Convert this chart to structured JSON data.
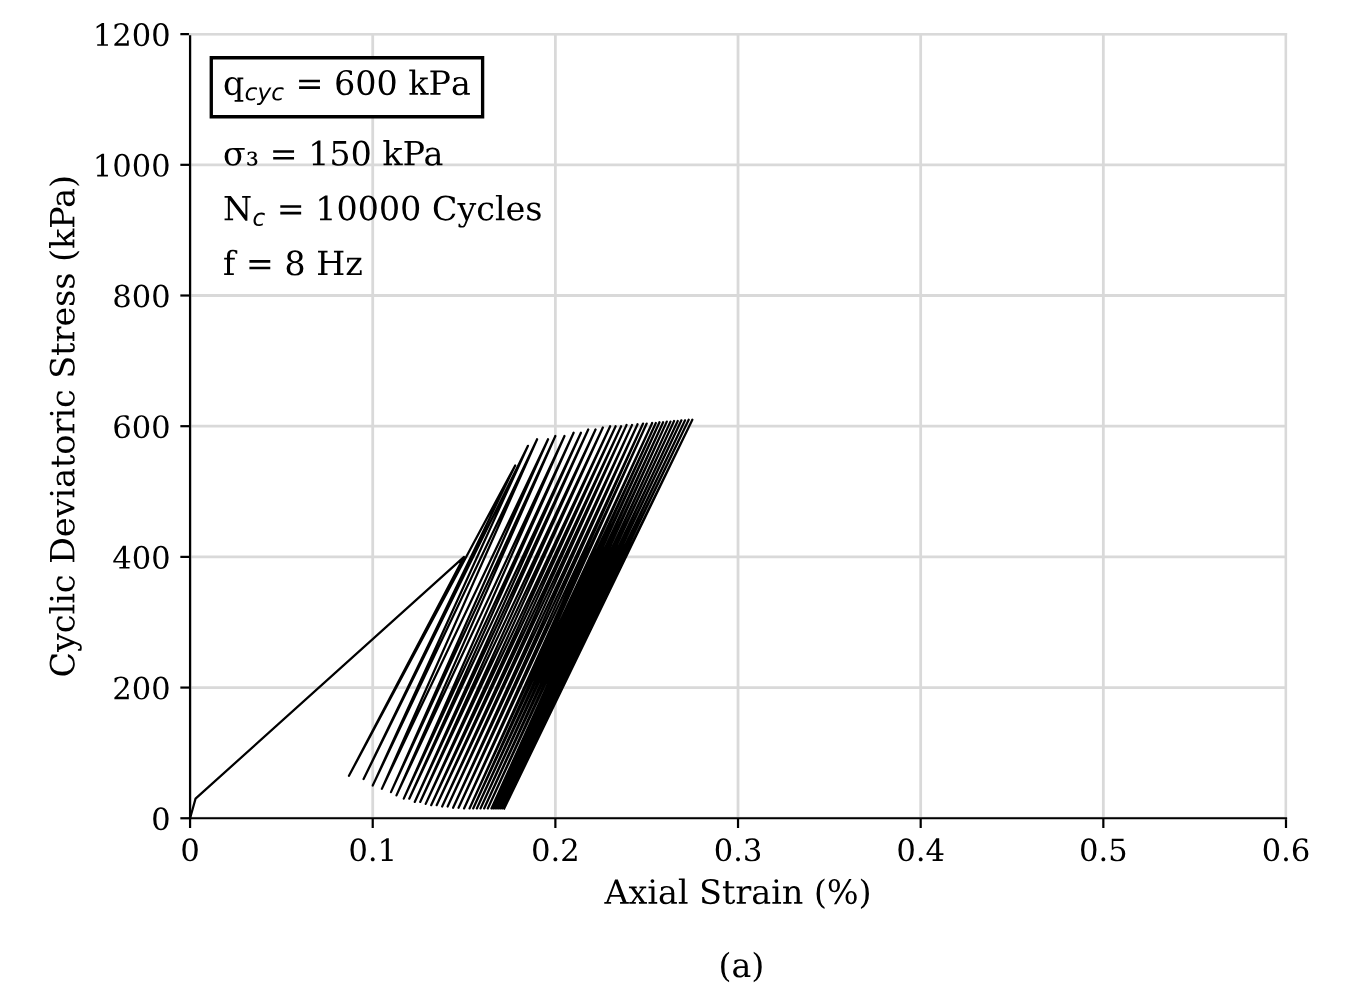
{
  "chart_data": {
    "type": "line",
    "title": "(a)",
    "xlabel": "Axial Strain (%)",
    "ylabel": "Cyclic Deviatoric Stress (kPa)",
    "annotations": [
      "q$_{cyc}$ = 600 kPa",
      "σ₃ = 150 kPa",
      "N$_{c}$ = 10000 Cycles",
      "f = 8 Hz"
    ],
    "series": [
      {
        "color": "#000000",
        "x": [
          0,
          0.003,
          0.15,
          0.087,
          0.178,
          0.095,
          0.185,
          0.1,
          0.19,
          0.105,
          0.196,
          0.11,
          0.2,
          0.113,
          0.205,
          0.117,
          0.21,
          0.12,
          0.214,
          0.123,
          0.218,
          0.126,
          0.222,
          0.129,
          0.226,
          0.132,
          0.23,
          0.135,
          0.233,
          0.138,
          0.236,
          0.141,
          0.239,
          0.144,
          0.242,
          0.147,
          0.245,
          0.15,
          0.248,
          0.153,
          0.25,
          0.155,
          0.253,
          0.157,
          0.255,
          0.159,
          0.257,
          0.161,
          0.259,
          0.163,
          0.261,
          0.165,
          0.263,
          0.166,
          0.265,
          0.167,
          0.267,
          0.168,
          0.269,
          0.169,
          0.271,
          0.17,
          0.273,
          0.171,
          0.275,
          0.172
        ],
        "values": [
          0,
          30,
          400,
          65,
          540,
          60,
          570,
          50,
          580,
          45,
          580,
          40,
          585,
          35,
          585,
          30,
          590,
          30,
          590,
          25,
          595,
          25,
          595,
          22,
          598,
          20,
          600,
          20,
          600,
          18,
          600,
          18,
          602,
          16,
          602,
          16,
          603,
          15,
          604,
          15,
          604,
          15,
          605,
          15,
          605,
          15,
          606,
          15,
          606,
          15,
          607,
          15,
          607,
          15,
          608,
          15,
          608,
          15,
          609,
          15,
          609,
          15,
          610,
          15,
          610,
          15
        ]
      }
    ],
    "xlim": [
      0,
      0.6
    ],
    "xticks": [
      0,
      0.1,
      0.2,
      0.3,
      0.4,
      0.5,
      0.6
    ],
    "ylim": [
      0,
      1200
    ],
    "yticks": [
      0,
      200,
      400,
      600,
      800,
      1000,
      1200
    ],
    "grid": true,
    "legend": false
  }
}
